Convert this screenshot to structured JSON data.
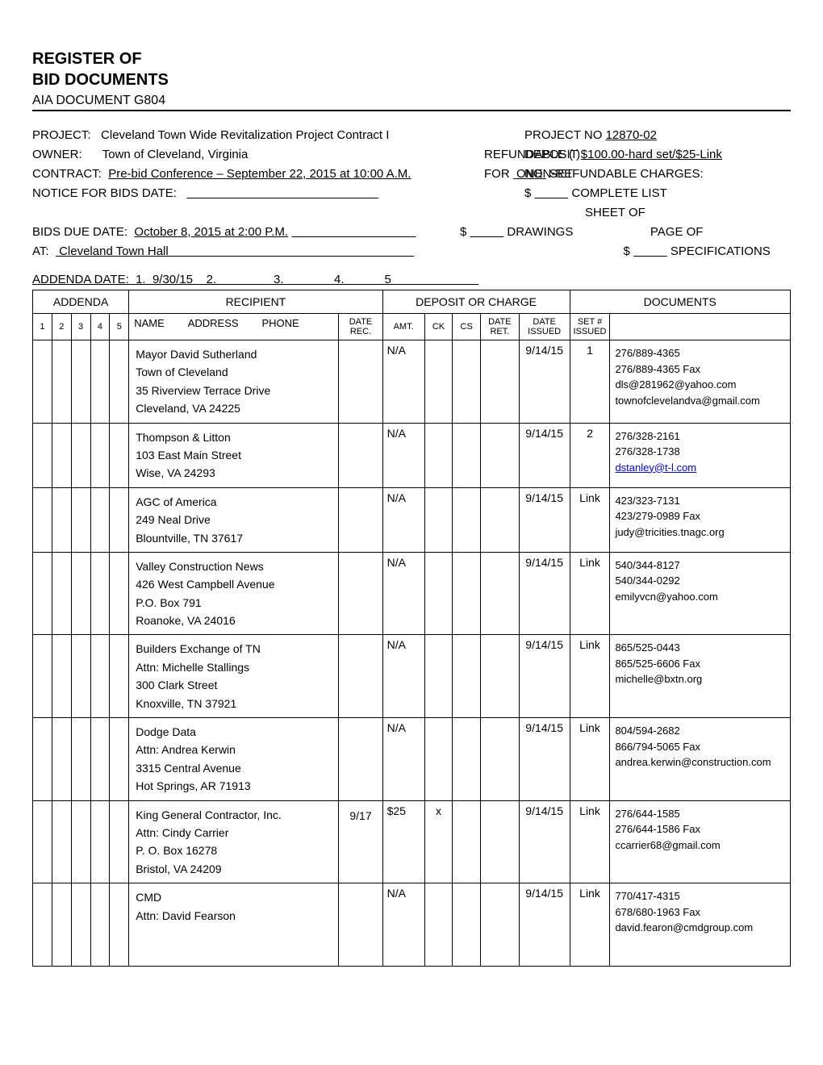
{
  "title": {
    "line1": "REGISTER OF",
    "line2": "BID DOCUMENTS",
    "subtitle": "AIA DOCUMENT G804"
  },
  "header": {
    "project_label": "PROJECT:",
    "project_value": "Cleveland Town Wide Revitalization Project Contract I",
    "project_no_label": "PROJECT NO",
    "project_no_value": "12870-02",
    "refundable_label": "REFUNDABLE  (  )",
    "owner_label": "OWNER:",
    "owner_value": "Town of Cleveland, Virginia",
    "deposit_label": "DEPOSIT",
    "deposit_value": "$100.00-hard set/$25-Link",
    "for_label": "FOR",
    "for_value": "ONE",
    "for_suffix": "SET",
    "contract_label": "CONTRACT:",
    "contract_value": "Pre-bid Conference – September 22, 2015 at 10:00 A.M.",
    "nonrefundable_label": "NON-REFUNDABLE CHARGES:",
    "notice_label": "NOTICE FOR BIDS DATE:",
    "complete_list_label": "COMPLETE LIST",
    "sheet_of_label": "SHEET OF",
    "drawings_label": "DRAWINGS",
    "bids_due_label": "BIDS DUE DATE:",
    "bids_due_value": "October 8, 2015 at 2:00 P.M.",
    "page_of_label": "PAGE OF",
    "at_label": "AT:",
    "at_value": "Cleveland Town Hall",
    "specifications_label": "SPECIFICATIONS",
    "addenda_date_label": "ADDENDA DATE:",
    "addenda_date_1": "9/30/15"
  },
  "table": {
    "headers": {
      "addenda": "ADDENDA",
      "recipient": "RECIPIENT",
      "deposit": "DEPOSIT OR CHARGE",
      "documents": "DOCUMENTS",
      "name": "NAME",
      "address": "ADDRESS",
      "phone": "PHONE",
      "date_rec": "DATE REC.",
      "amt": "AMT.",
      "ck": "CK",
      "cs": "CS",
      "date_ret": "DATE RET.",
      "date_issued": "DATE ISSUED",
      "set_num": "SET # ISSUED"
    },
    "rows": [
      {
        "recipient": [
          "Mayor David Sutherland",
          "Town of Cleveland",
          "35 Riverview Terrace Drive",
          "Cleveland, VA  24225"
        ],
        "date_rec": "",
        "amt": "N/A",
        "ck": "",
        "cs": "",
        "date_ret": "",
        "date_issued": "9/14/15",
        "set_num": "1",
        "docs": [
          "276/889-4365",
          "276/889-4365 Fax",
          "dls@281962@yahoo.com",
          "townofclevelandva@gmail.com"
        ]
      },
      {
        "recipient": [
          "Thompson & Litton",
          "103 East Main Street",
          "Wise, VA  24293"
        ],
        "date_rec": "",
        "amt": "N/A",
        "ck": "",
        "cs": "",
        "date_ret": "",
        "date_issued": "9/14/15",
        "set_num": "2",
        "docs": [
          "276/328-2161",
          "276/328-1738"
        ],
        "docs_link": "dstanley@t-l.com"
      },
      {
        "recipient": [
          "AGC of America",
          "249 Neal Drive",
          "Blountville, TN  37617"
        ],
        "date_rec": "",
        "amt": "N/A",
        "ck": "",
        "cs": "",
        "date_ret": "",
        "date_issued": "9/14/15",
        "set_num": "Link",
        "docs": [
          "423/323-7131",
          "423/279-0989 Fax",
          "judy@tricities.tnagc.org"
        ]
      },
      {
        "recipient": [
          "Valley Construction News",
          "426 West Campbell Avenue",
          "P.O. Box 791",
          "Roanoke, VA   24016"
        ],
        "date_rec": "",
        "amt": "N/A",
        "ck": "",
        "cs": "",
        "date_ret": "",
        "date_issued": "9/14/15",
        "set_num": "Link",
        "docs": [
          "540/344-8127",
          "540/344-0292",
          "emilyvcn@yahoo.com"
        ]
      },
      {
        "recipient": [
          "Builders Exchange of TN",
          "Attn:  Michelle Stallings",
          "300 Clark Street",
          "Knoxville, TN  37921"
        ],
        "date_rec": "",
        "amt": "N/A",
        "ck": "",
        "cs": "",
        "date_ret": "",
        "date_issued": "9/14/15",
        "set_num": "Link",
        "docs": [
          "865/525-0443",
          "865/525-6606 Fax",
          "michelle@bxtn.org"
        ]
      },
      {
        "recipient": [
          "Dodge Data",
          "Attn:  Andrea Kerwin",
          "3315 Central Avenue",
          "Hot Springs, AR  71913"
        ],
        "date_rec": "",
        "amt": "N/A",
        "ck": "",
        "cs": "",
        "date_ret": "",
        "date_issued": "9/14/15",
        "set_num": "Link",
        "docs": [
          "804/594-2682",
          "866/794-5065 Fax",
          "andrea.kerwin@construction.com"
        ]
      },
      {
        "recipient": [
          "King General Contractor, Inc.",
          "Attn:  Cindy Carrier",
          "P. O. Box 16278",
          "Bristol, VA  24209"
        ],
        "date_rec": "9/17",
        "amt": "$25",
        "ck": "x",
        "cs": "",
        "date_ret": "",
        "date_issued": "9/14/15",
        "set_num": "Link",
        "docs": [
          "276/644-1585",
          "276/644-1586 Fax",
          "ccarrier68@gmail.com"
        ]
      },
      {
        "recipient": [
          "CMD",
          "Attn:  David Fearson",
          "",
          ""
        ],
        "date_rec": "",
        "amt": "N/A",
        "ck": "",
        "cs": "",
        "date_ret": "",
        "date_issued": "9/14/15",
        "set_num": "Link",
        "docs": [
          "770/417-4315",
          "678/680-1963 Fax",
          "david.fearon@cmdgroup.com"
        ]
      }
    ]
  }
}
